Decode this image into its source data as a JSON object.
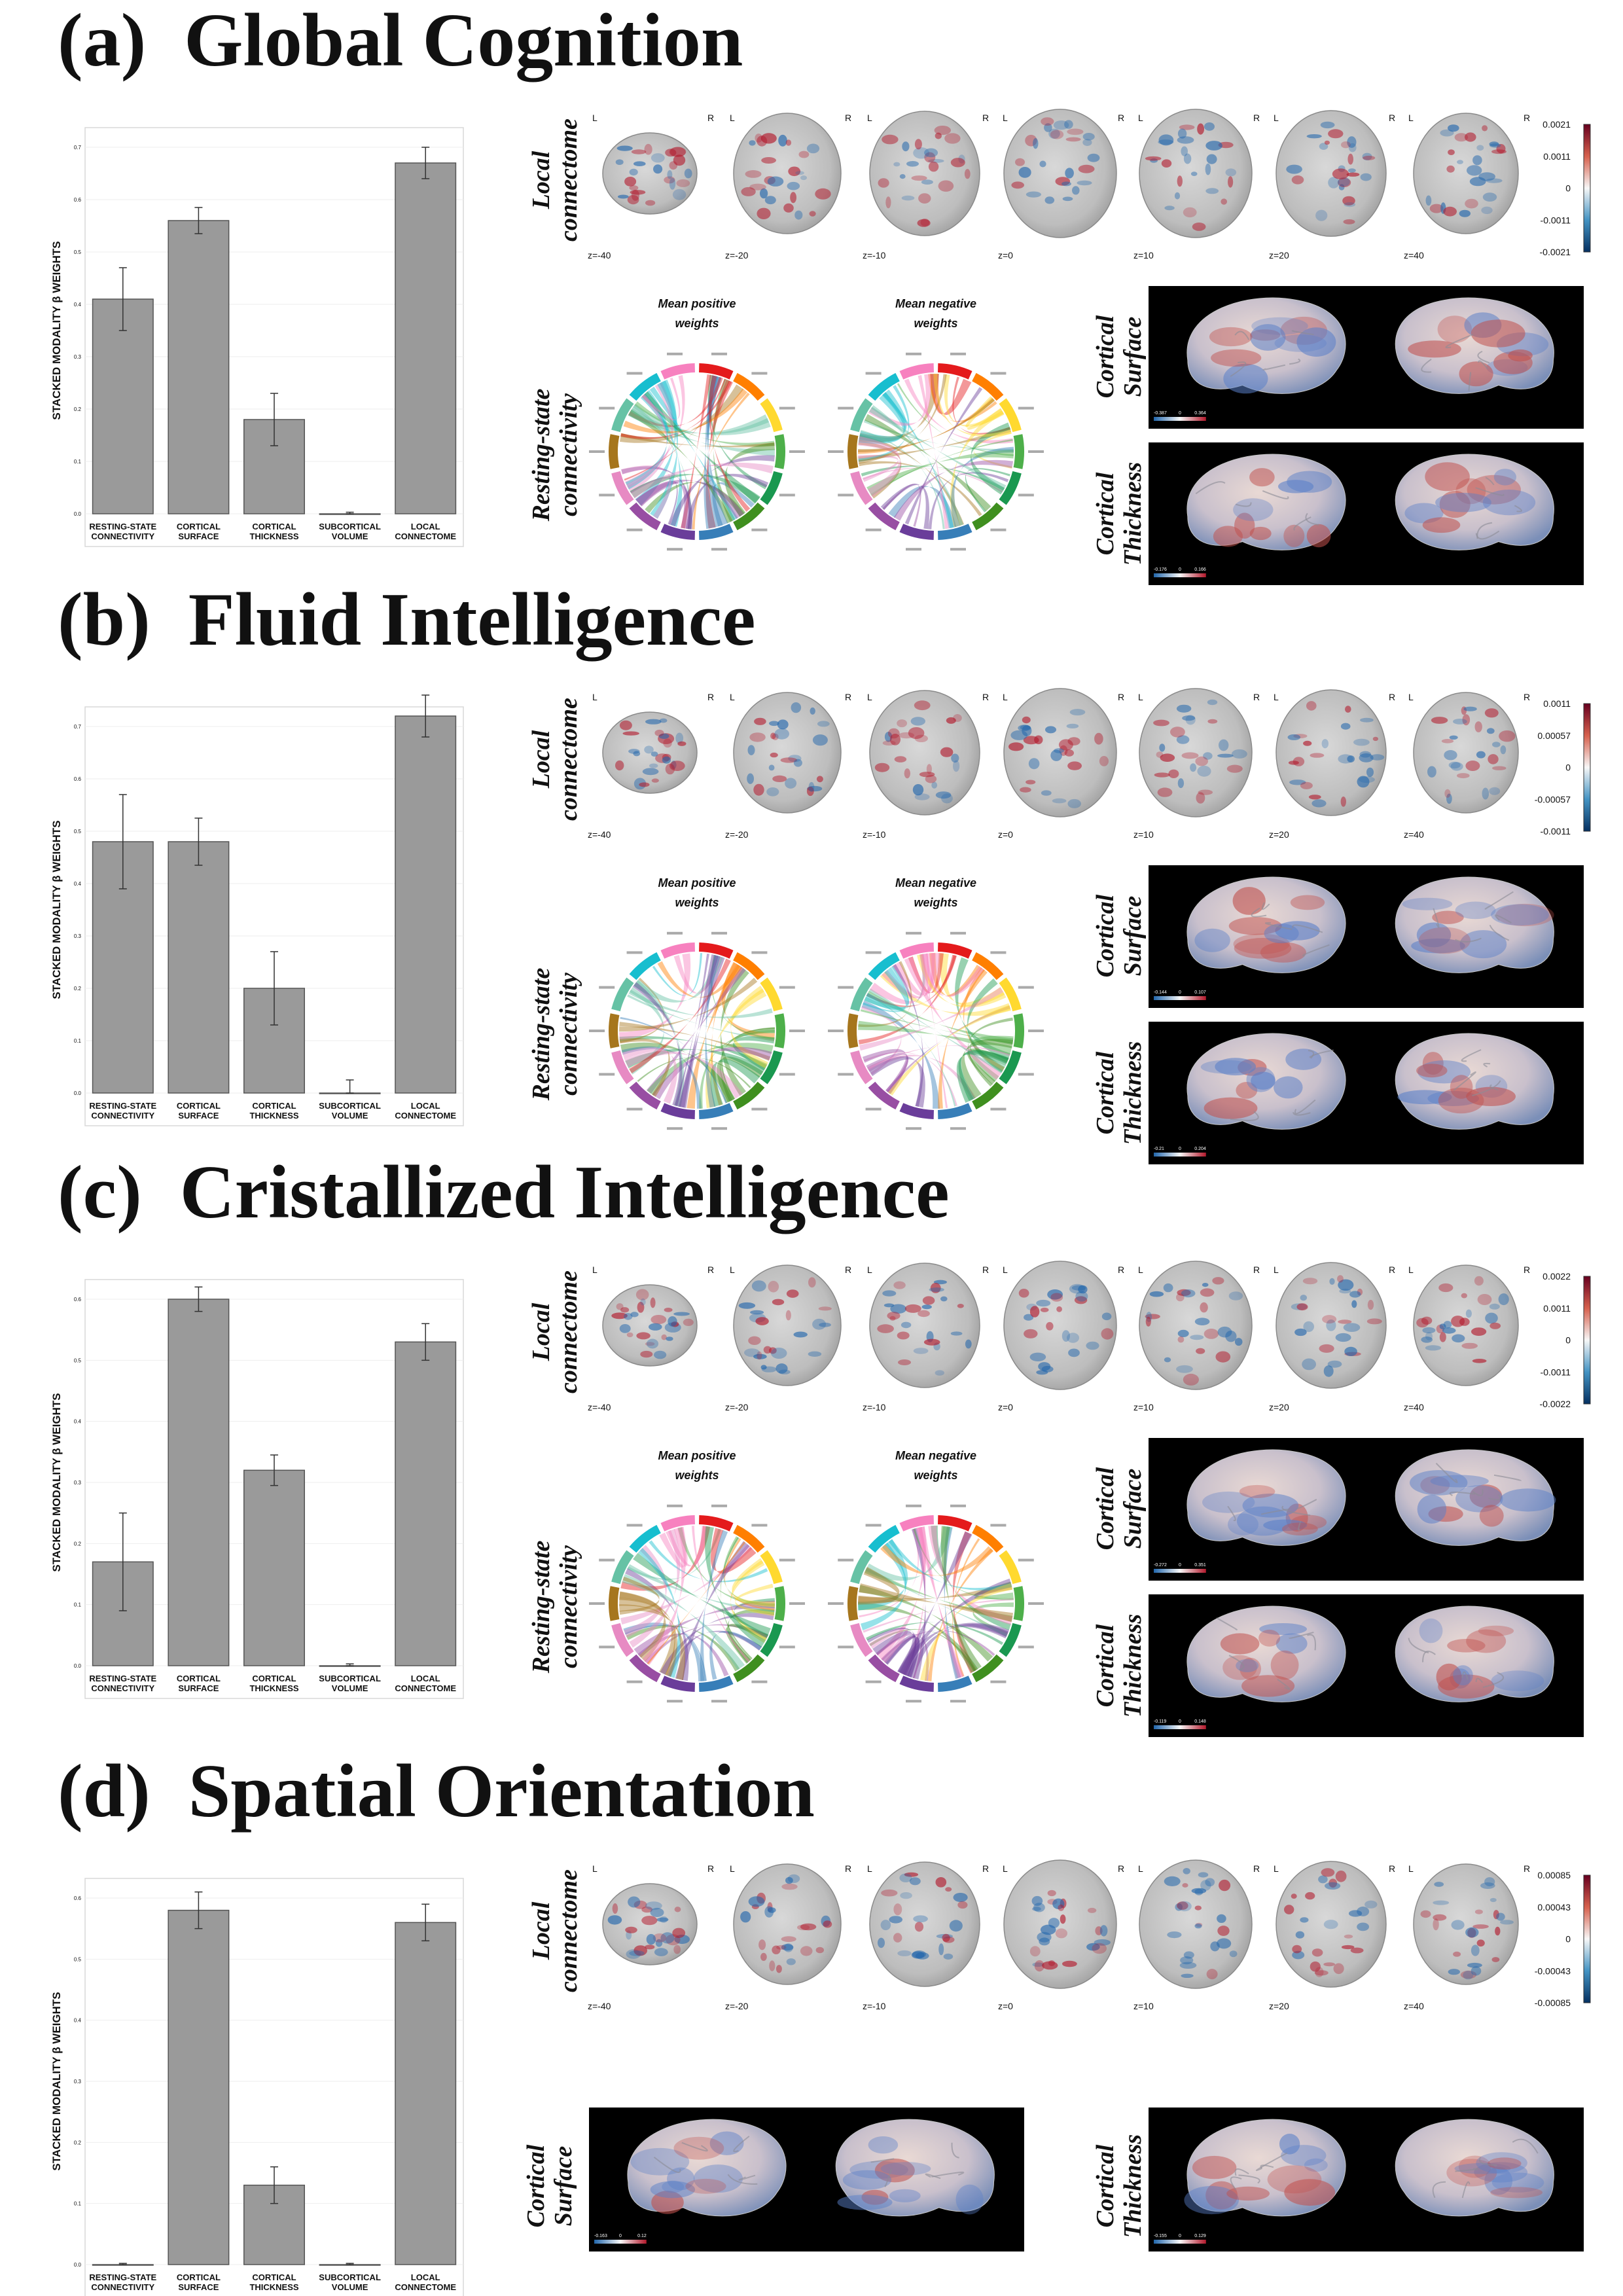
{
  "common": {
    "categories": [
      "RESTING-STATE\nCONNECTIVITY",
      "CORTICAL\nSURFACE",
      "CORTICAL\nTHICKNESS",
      "SUBCORTICAL\nVOLUME",
      "LOCAL\nCONNECTOME"
    ],
    "ylabel": "STACKED MODALITY β WEIGHTS",
    "slice_labels": [
      "z=-40",
      "z=-20",
      "z=-10",
      "z=0",
      "z=10",
      "z=20",
      "z=40"
    ],
    "lr_left": "L",
    "lr_right": "R",
    "row_local": [
      "Local",
      "connectome"
    ],
    "row_resting": [
      "Resting-state",
      "connectivity"
    ],
    "row_surface": [
      "Cortical",
      "Surface"
    ],
    "row_thickness": [
      "Cortical",
      "Thickness"
    ],
    "chord_positive": [
      "Mean positive",
      "weights"
    ],
    "chord_negative": [
      "Mean negative",
      "weights"
    ],
    "colors": {
      "bar": "#9a9a9a",
      "positive": "#b2182b",
      "negative": "#2166ac"
    }
  },
  "chart_data": [
    {
      "type": "bar",
      "title": "(a)  Global Cognition",
      "values": [
        0.41,
        0.56,
        0.18,
        0.0,
        0.67
      ],
      "errors": [
        0.06,
        0.025,
        0.05,
        0.003,
        0.03
      ],
      "ylim": [
        0,
        0.7
      ],
      "yticks": [
        "0.0",
        "0.1",
        "0.2",
        "0.3",
        "0.4",
        "0.5",
        "0.6",
        "0.7"
      ],
      "colorbar": [
        "0.0021",
        "0.0011",
        "0",
        "-0.0011",
        "-0.0021"
      ],
      "surface_scale": [
        "-0.387",
        "0",
        "0.364"
      ],
      "thickness_scale": [
        "-0.176",
        "0",
        "0.166"
      ]
    },
    {
      "type": "bar",
      "title": "(b)  Fluid Intelligence",
      "values": [
        0.48,
        0.48,
        0.2,
        0.0,
        0.72
      ],
      "errors": [
        0.09,
        0.045,
        0.07,
        0.025,
        0.04
      ],
      "ylim": [
        0,
        0.7
      ],
      "yticks": [
        "0.0",
        "0.1",
        "0.2",
        "0.3",
        "0.4",
        "0.5",
        "0.6",
        "0.7"
      ],
      "colorbar": [
        "0.0011",
        "0.00057",
        "0",
        "-0.00057",
        "-0.0011"
      ],
      "surface_scale": [
        "-0.144",
        "0",
        "0.107"
      ],
      "thickness_scale": [
        "-0.21",
        "0",
        "0.204"
      ]
    },
    {
      "type": "bar",
      "title": "(c)  Cristallized Intelligence",
      "values": [
        0.17,
        0.6,
        0.32,
        0.0,
        0.53
      ],
      "errors": [
        0.08,
        0.02,
        0.025,
        0.003,
        0.03
      ],
      "ylim": [
        0,
        0.6
      ],
      "yticks": [
        "0.0",
        "0.1",
        "0.2",
        "0.3",
        "0.4",
        "0.5",
        "0.6"
      ],
      "colorbar": [
        "0.0022",
        "0.0011",
        "0",
        "-0.0011",
        "-0.0022"
      ],
      "surface_scale": [
        "-0.272",
        "0",
        "0.351"
      ],
      "thickness_scale": [
        "-0.119",
        "0",
        "0.148"
      ]
    },
    {
      "type": "bar",
      "title": "(d)  Spatial Orientation",
      "values": [
        0.0,
        0.58,
        0.13,
        0.0,
        0.56
      ],
      "errors": [
        0.002,
        0.03,
        0.03,
        0.002,
        0.03
      ],
      "ylim": [
        0,
        0.6
      ],
      "yticks": [
        "0.0",
        "0.1",
        "0.2",
        "0.3",
        "0.4",
        "0.5",
        "0.6"
      ],
      "colorbar": [
        "0.00085",
        "0.00043",
        "0",
        "-0.00043",
        "-0.00085"
      ],
      "surface_scale": [
        "-0.163",
        "0",
        "0.12"
      ],
      "thickness_scale": [
        "-0.155",
        "0",
        "0.129"
      ]
    }
  ]
}
